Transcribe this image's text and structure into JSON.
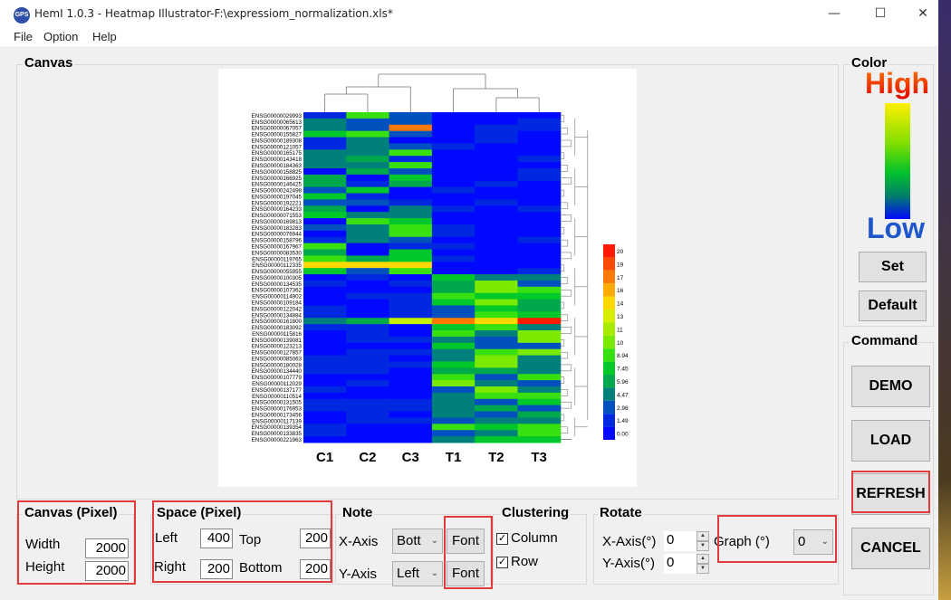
{
  "titlebar": {
    "app_icon": "GPS",
    "title": "HemI 1.0.3 - Heatmap Illustrator-F:\\expressiom_normalization.xls*",
    "minimize": "—",
    "maximize": "☐",
    "close": "✕"
  },
  "menu": [
    "File",
    "Option",
    "Help"
  ],
  "canvas": {
    "label": "Canvas",
    "rows": [
      "ENSG00000029993",
      "ENSG00000065613",
      "ENSG00000067057",
      "ENSG00000155827",
      "ENSG00000189308",
      "ENSG00000121057",
      "ENSG00000165175",
      "ENSG00000143418",
      "ENSG00000184363",
      "ENSG00000158825",
      "ENSG00000166925",
      "ENSG00000146425",
      "ENSG00000242498",
      "ENSG00000197045",
      "ENSG00000192221",
      "ENSG00000164233",
      "ENSG00000071553",
      "ENSG00000169813",
      "ENSG00000183283",
      "ENSG00000076944",
      "ENSG00000158796",
      "ENSG00000167967",
      "ENSG00000083530",
      "ENSG00000119765",
      "ENSG00000112335",
      "ENSG00000055955",
      "ENSG00000100305",
      "ENSG00000134535",
      "ENSG00000107362",
      "ENSG00000114902",
      "ENSG00000109184",
      "ENSG00000122042",
      "ENSG00000134884",
      "ENSG00000161800",
      "ENSG00000183092",
      "ENSG00000115816",
      "ENSG00000139081",
      "ENSG00000123213",
      "ENSG00000127857",
      "ENSG00000085063",
      "ENSG00000180028",
      "ENSG00000134440",
      "ENSG00000107779",
      "ENSG00000112029",
      "ENSG00000137177",
      "ENSG00000110514",
      "ENSG00000131505",
      "ENSG00000176953",
      "ENSG00000173456",
      "ENSG00000117139",
      "ENSG00000139354",
      "ENSG00000133835",
      "ENSG00000221963"
    ],
    "columns": [
      "C1",
      "C2",
      "C3",
      "T1",
      "T2",
      "T3"
    ],
    "legend_ticks": [
      "20",
      "19",
      "17",
      "16",
      "14",
      "13",
      "11",
      "10",
      "8.94",
      "7.45",
      "5.96",
      "4.47",
      "2.98",
      "1.49",
      "0.00"
    ]
  },
  "color_panel": {
    "label": "Color",
    "high": "High",
    "low": "Low",
    "set": "Set",
    "default": "Default"
  },
  "command": {
    "label": "Command",
    "demo": "DEMO",
    "load": "LOAD",
    "refresh": "REFRESH",
    "cancel": "CANCEL"
  },
  "canvas_pixel": {
    "label": "Canvas (Pixel)",
    "width_label": "Width",
    "width": "2000",
    "height_label": "Height",
    "height": "2000"
  },
  "space_pixel": {
    "label": "Space (Pixel)",
    "left_label": "Left",
    "left": "400",
    "top_label": "Top",
    "top": "200",
    "right_label": "Right",
    "right": "200",
    "bottom_label": "Bottom",
    "bottom": "200"
  },
  "note": {
    "label": "Note",
    "xaxis_label": "X-Axis",
    "xaxis_value": "Bott",
    "yaxis_label": "Y-Axis",
    "yaxis_value": "Left",
    "font1": "Font",
    "font2": "Font"
  },
  "clustering": {
    "label": "Clustering",
    "column": "Column",
    "row": "Row",
    "check": "✓"
  },
  "rotate": {
    "label": "Rotate",
    "xaxis_label": "X-Axis(°)",
    "xaxis": "0",
    "yaxis_label": "Y-Axis(°)",
    "yaxis": "0",
    "graph_label": "Graph (°)",
    "graph": "0"
  }
}
